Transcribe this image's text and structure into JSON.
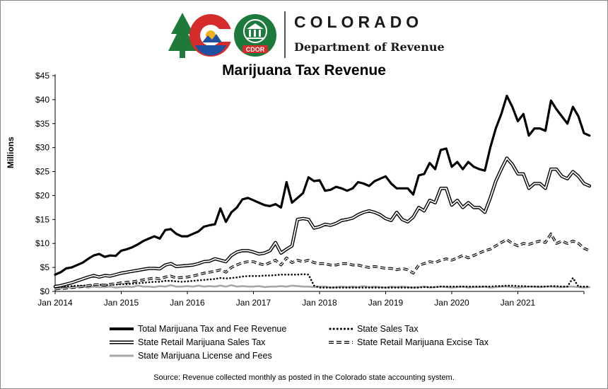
{
  "header": {
    "state_name": "COLORADO",
    "department": "Department of Revenue",
    "seal_text": "CDOR"
  },
  "footer": {
    "source": "Source: Revenue collected monthly as posted in the Colorado state accounting system."
  },
  "colors": {
    "series_line": "#000000",
    "license_fees": "#a6a6a6",
    "logo_tree": "#1f7a3a",
    "logo_red": "#d62b2b",
    "logo_blue": "#1f4fa0",
    "logo_gold": "#f2b01e",
    "seal_green": "#1b7a3c"
  },
  "chart_data": {
    "type": "line",
    "title": "Marijuana Tax Revenue",
    "xlabel": "",
    "ylabel": "Millions",
    "ylim": [
      0,
      45
    ],
    "y_ticks": [
      "$0",
      "$5",
      "$10",
      "$15",
      "$20",
      "$25",
      "$30",
      "$35",
      "$40",
      "$45"
    ],
    "x_ticks": [
      "Jan 2014",
      "Jan 2015",
      "Jan 2016",
      "Jan 2017",
      "Jan 2018",
      "Jan 2019",
      "Jan 2020",
      "Jan 2021"
    ],
    "grid": false,
    "legend_position": "bottom",
    "x_start": "2014-01",
    "series": [
      {
        "name": "Total Marijuana Tax and Fee Revenue",
        "style": "thick-solid",
        "values": [
          3.5,
          4.0,
          4.8,
          5.0,
          5.5,
          6.0,
          6.8,
          7.5,
          7.8,
          7.2,
          7.5,
          7.4,
          8.5,
          8.8,
          9.2,
          9.8,
          10.5,
          11.0,
          11.5,
          11.0,
          12.8,
          13.0,
          12.0,
          11.5,
          11.5,
          12.0,
          12.5,
          13.5,
          13.8,
          14.0,
          17.3,
          14.5,
          16.5,
          17.5,
          19.2,
          19.5,
          19.0,
          18.5,
          18.0,
          17.8,
          18.2,
          17.5,
          22.8,
          18.5,
          19.5,
          20.5,
          23.8,
          23.0,
          23.2,
          21.0,
          21.2,
          21.8,
          21.5,
          21.0,
          21.5,
          22.8,
          22.5,
          22.0,
          23.0,
          23.5,
          24.0,
          22.5,
          21.5,
          21.5,
          21.5,
          20.2,
          24.2,
          24.5,
          26.8,
          25.5,
          29.5,
          29.8,
          26.0,
          27.0,
          25.5,
          27.0,
          26.0,
          25.5,
          25.2,
          30.0,
          34.0,
          37.0,
          40.8,
          38.5,
          35.5,
          37.0,
          32.5,
          34.0,
          34.0,
          33.5,
          39.8,
          38.0,
          36.5,
          35.0,
          38.5,
          36.5,
          33.0,
          32.5
        ]
      },
      {
        "name": "State Sales Tax",
        "style": "dotted",
        "values": [
          0.8,
          0.9,
          1.0,
          1.1,
          1.2,
          1.2,
          1.3,
          1.3,
          1.4,
          1.3,
          1.4,
          1.4,
          1.5,
          1.5,
          1.6,
          1.7,
          1.8,
          1.9,
          2.0,
          2.0,
          2.2,
          2.2,
          2.1,
          2.0,
          2.1,
          2.2,
          2.3,
          2.4,
          2.5,
          2.6,
          2.8,
          2.7,
          2.8,
          2.9,
          3.1,
          3.2,
          3.2,
          3.2,
          3.3,
          3.3,
          3.4,
          3.5,
          3.5,
          3.5,
          3.5,
          3.6,
          3.5,
          1.2,
          0.8,
          0.8,
          0.8,
          0.8,
          0.8,
          0.8,
          0.8,
          0.8,
          0.8,
          0.8,
          0.8,
          0.8,
          0.8,
          0.8,
          0.8,
          0.8,
          0.8,
          0.8,
          0.8,
          0.9,
          0.9,
          0.9,
          1.0,
          1.0,
          1.0,
          1.0,
          1.0,
          1.0,
          1.0,
          1.0,
          1.0,
          1.0,
          1.1,
          1.1,
          1.2,
          1.2,
          1.1,
          1.1,
          1.0,
          1.0,
          1.0,
          1.0,
          1.1,
          1.1,
          1.0,
          1.0,
          2.8,
          1.0,
          1.0,
          1.0
        ]
      },
      {
        "name": "State Retail Marijuana Sales Tax",
        "style": "double",
        "values": [
          1.0,
          1.2,
          1.5,
          1.8,
          2.2,
          2.6,
          3.0,
          3.3,
          3.0,
          3.3,
          3.2,
          3.5,
          3.8,
          4.0,
          4.2,
          4.4,
          4.6,
          4.8,
          4.8,
          4.7,
          5.5,
          5.8,
          5.2,
          5.3,
          5.4,
          5.5,
          5.8,
          6.2,
          6.3,
          6.8,
          6.5,
          6.2,
          7.5,
          8.2,
          8.5,
          8.5,
          8.2,
          7.8,
          8.0,
          8.5,
          10.2,
          8.0,
          8.8,
          9.5,
          15.0,
          15.2,
          15.0,
          13.2,
          13.5,
          14.0,
          13.8,
          14.2,
          14.8,
          15.0,
          15.3,
          16.0,
          16.5,
          16.8,
          16.5,
          16.0,
          15.2,
          14.8,
          16.5,
          15.0,
          14.5,
          15.5,
          17.5,
          16.8,
          19.0,
          18.5,
          21.5,
          21.5,
          18.0,
          19.0,
          17.5,
          18.5,
          17.5,
          17.5,
          16.5,
          19.5,
          23.0,
          25.5,
          27.8,
          26.5,
          24.5,
          24.5,
          21.5,
          22.5,
          22.5,
          21.5,
          25.5,
          25.5,
          24.0,
          23.5,
          25.0,
          24.0,
          22.5,
          22.0
        ]
      },
      {
        "name": "State Retail Marijuana Excise Tax",
        "style": "dashed",
        "values": [
          0.5,
          0.6,
          0.7,
          0.8,
          0.9,
          1.0,
          1.2,
          1.4,
          1.4,
          1.3,
          1.5,
          1.6,
          1.8,
          1.9,
          2.0,
          2.2,
          2.4,
          2.6,
          2.8,
          2.6,
          3.0,
          3.2,
          2.8,
          2.9,
          3.0,
          3.2,
          3.5,
          3.8,
          4.0,
          4.2,
          4.5,
          4.0,
          5.0,
          5.5,
          6.0,
          6.2,
          6.2,
          5.8,
          5.5,
          6.0,
          6.5,
          5.5,
          7.0,
          6.0,
          6.5,
          6.2,
          6.5,
          6.0,
          5.8,
          5.8,
          5.5,
          5.5,
          5.8,
          5.8,
          5.5,
          5.5,
          5.2,
          5.0,
          5.2,
          5.0,
          4.8,
          4.8,
          4.5,
          4.8,
          4.5,
          3.8,
          5.5,
          5.8,
          6.2,
          6.0,
          6.5,
          6.8,
          6.5,
          7.0,
          7.5,
          7.0,
          7.5,
          8.0,
          8.5,
          8.8,
          9.5,
          10.2,
          10.8,
          10.0,
          9.5,
          10.0,
          9.8,
          10.2,
          10.5,
          10.2,
          12.0,
          10.0,
          10.5,
          10.0,
          10.5,
          10.0,
          9.0,
          8.5
        ]
      },
      {
        "name": "State Marijuana License and Fees",
        "style": "gray",
        "values": [
          0.8,
          0.6,
          0.9,
          0.7,
          0.9,
          1.0,
          0.8,
          1.0,
          0.9,
          0.9,
          1.0,
          0.8,
          0.9,
          1.0,
          0.9,
          1.2,
          1.0,
          1.0,
          0.9,
          1.1,
          1.0,
          1.3,
          1.0,
          1.0,
          1.1,
          1.0,
          1.2,
          1.0,
          1.1,
          1.0,
          1.2,
          1.0,
          1.3,
          1.0,
          1.1,
          1.0,
          1.0,
          1.1,
          0.9,
          1.0,
          1.0,
          1.1,
          1.0,
          1.2,
          1.1,
          1.0,
          1.0,
          0.9,
          1.0,
          1.0,
          0.8,
          0.9,
          1.0,
          0.9,
          1.0,
          0.9,
          1.1,
          0.9,
          1.0,
          0.9,
          0.8,
          1.0,
          0.9,
          1.0,
          0.9,
          0.8,
          0.9,
          1.0,
          0.8,
          0.9,
          1.0,
          0.9,
          0.8,
          0.9,
          1.0,
          0.8,
          0.9,
          0.9,
          1.0,
          0.8,
          0.9,
          1.0,
          1.0,
          0.9,
          0.8,
          0.9,
          1.0,
          1.0,
          0.9,
          1.0,
          1.0,
          0.9,
          0.9,
          1.0,
          1.0,
          0.9,
          0.8,
          0.9
        ]
      }
    ]
  }
}
